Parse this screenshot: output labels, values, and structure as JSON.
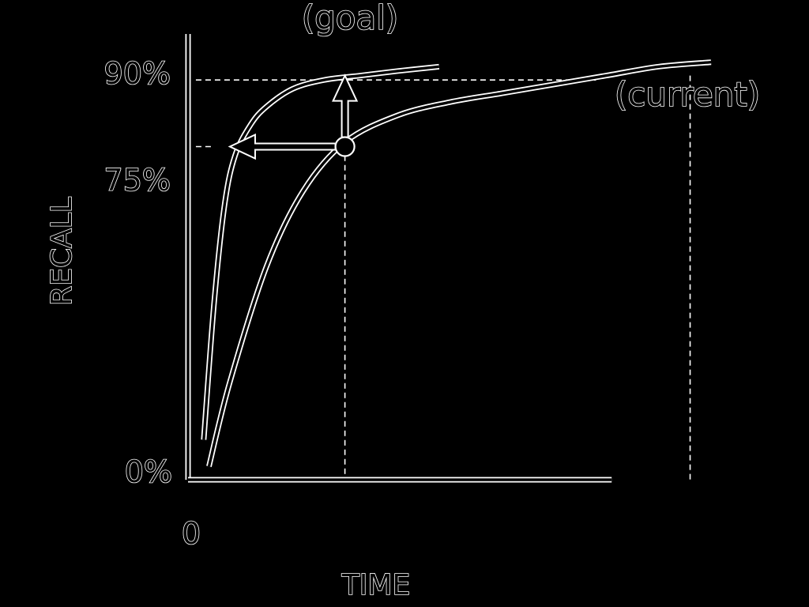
{
  "chart_data": {
    "type": "line",
    "xlabel": "TIME",
    "ylabel": "RECALL",
    "x_ticks": [
      "0"
    ],
    "y_ticks": [
      {
        "label": "0%",
        "value": 0
      },
      {
        "label": "75%",
        "value": 75
      },
      {
        "label": "90%",
        "value": 90
      }
    ],
    "xlim": [
      0,
      100
    ],
    "ylim": [
      0,
      100
    ],
    "grid": false,
    "series": [
      {
        "name": "(goal)",
        "x": [
          3,
          5,
          7,
          9,
          12,
          15,
          20,
          26,
          33,
          40,
          48
        ],
        "y": [
          9,
          40,
          62,
          73,
          80,
          84,
          88,
          90,
          91,
          92,
          93
        ]
      },
      {
        "name": "(current)",
        "x": [
          4,
          8,
          15,
          22,
          30,
          40,
          50,
          60,
          70,
          80,
          90,
          100
        ],
        "y": [
          3,
          22,
          48,
          65,
          76,
          82,
          85,
          87,
          89,
          91,
          93,
          94
        ]
      }
    ],
    "markers": [
      {
        "label": "current-at-75-percent",
        "x": 30,
        "y": 75
      }
    ],
    "reference_lines": {
      "h_dashed": [
        90,
        75
      ],
      "v_dashed": [
        30,
        96
      ]
    },
    "annotations": [
      {
        "text": "(goal)",
        "target_series": "(goal)"
      },
      {
        "text": "(current)",
        "target_series": "(current)"
      }
    ],
    "arrows": [
      {
        "from": [
          30,
          75
        ],
        "to": [
          30,
          91
        ],
        "direction": "up"
      },
      {
        "from": [
          30,
          75
        ],
        "to": [
          8,
          75
        ],
        "direction": "left"
      }
    ],
    "style": {
      "background": "#000000",
      "stroke": "#ffffff"
    }
  }
}
